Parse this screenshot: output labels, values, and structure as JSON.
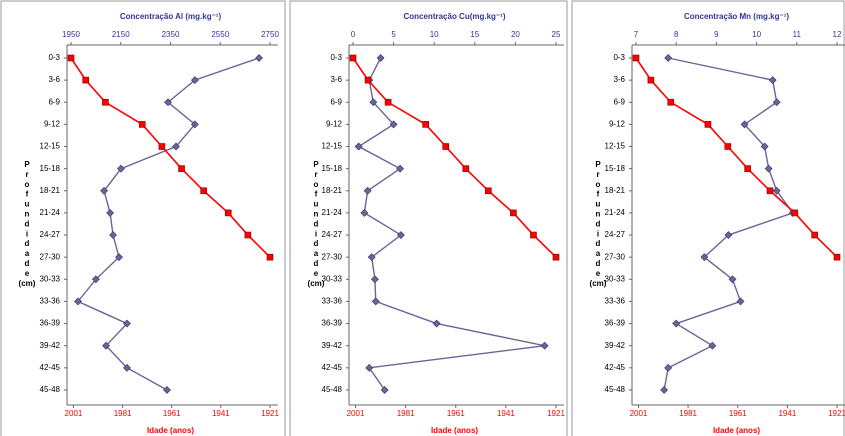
{
  "chart_data": [
    {
      "type": "line",
      "title": "Concentração Al (mg.kg⁻¹)",
      "x_label": "Idade (anos)",
      "y_label": "Profundidade (cm)",
      "categories": [
        "0-3",
        "3-6",
        "6-9",
        "9-12",
        "12-15",
        "15-18",
        "18-21",
        "21-24",
        "24-27",
        "27-30",
        "30-33",
        "33-36",
        "36-39",
        "39-42",
        "42-45",
        "45-48"
      ],
      "xlim": [
        1950,
        2750
      ],
      "xticks": [
        1950,
        2150,
        2350,
        2550,
        2750
      ],
      "x2lim": [
        2002,
        1921
      ],
      "x2ticks": [
        2001,
        1981,
        1961,
        1941,
        1921
      ],
      "series": [
        {
          "color": "#666699",
          "values": [
            2706,
            2448,
            2340,
            2448,
            2372,
            2151,
            2083,
            2107,
            2119,
            2143,
            2050,
            1978,
            2175,
            2091,
            2175,
            2336
          ]
        },
        {
          "color": "#ff0000",
          "axis": "x2",
          "values": [
            2002,
            1996,
            1988,
            1973,
            1965,
            1957,
            1948,
            1938,
            1930,
            1921,
            null,
            null,
            null,
            null,
            null,
            null
          ]
        }
      ]
    },
    {
      "type": "line",
      "title": "Concentração Cu(mg.kg⁻¹)",
      "x_label": "Idade (anos)",
      "y_label": "Profundidade (cm)",
      "categories": [
        "0-3",
        "3-6",
        "6-9",
        "9-12",
        "12-15",
        "15-18",
        "18-21",
        "21-24",
        "24-27",
        "27-30",
        "30-33",
        "33-36",
        "36-39",
        "39-42",
        "42-45",
        "45-48"
      ],
      "xlim": [
        0,
        25
      ],
      "xticks": [
        0,
        5,
        10,
        15,
        20,
        25
      ],
      "x2lim": [
        2002,
        1921
      ],
      "x2ticks": [
        2001,
        1981,
        1961,
        1941,
        1921
      ],
      "series": [
        {
          "color": "#666699",
          "values": [
            3.4,
            2.0,
            2.5,
            5.0,
            0.7,
            5.8,
            1.8,
            1.4,
            5.9,
            2.3,
            2.7,
            2.8,
            10.3,
            23.6,
            2.0,
            3.9
          ]
        },
        {
          "color": "#ff0000",
          "axis": "x2",
          "values": [
            2002,
            1996,
            1988,
            1973,
            1965,
            1957,
            1948,
            1938,
            1930,
            1921,
            null,
            null,
            null,
            null,
            null,
            null
          ]
        }
      ]
    },
    {
      "type": "line",
      "title": "Concentração Mn (mg.kg⁻¹)",
      "x_label": "Idade (anos)",
      "y_label": "Profundidade (cm)",
      "categories": [
        "0-3",
        "3-6",
        "6-9",
        "9-12",
        "12-15",
        "15-18",
        "18-21",
        "21-24",
        "24-27",
        "27-30",
        "30-33",
        "33-36",
        "36-39",
        "39-42",
        "42-45",
        "45-48"
      ],
      "xlim": [
        7,
        12
      ],
      "xticks": [
        7,
        8,
        9,
        10,
        11,
        12
      ],
      "x2lim": [
        2002,
        1921
      ],
      "x2ticks": [
        2001,
        1981,
        1961,
        1941,
        1921
      ],
      "series": [
        {
          "color": "#666699",
          "values": [
            7.8,
            10.4,
            10.5,
            9.7,
            10.2,
            10.3,
            10.5,
            10.9,
            9.3,
            8.7,
            9.4,
            9.6,
            8.0,
            8.9,
            7.8,
            7.7
          ]
        },
        {
          "color": "#ff0000",
          "axis": "x2",
          "values": [
            2002,
            1996,
            1988,
            1973,
            1965,
            1957,
            1948,
            1938,
            1930,
            1921,
            null,
            null,
            null,
            null,
            null,
            null
          ]
        }
      ]
    }
  ]
}
